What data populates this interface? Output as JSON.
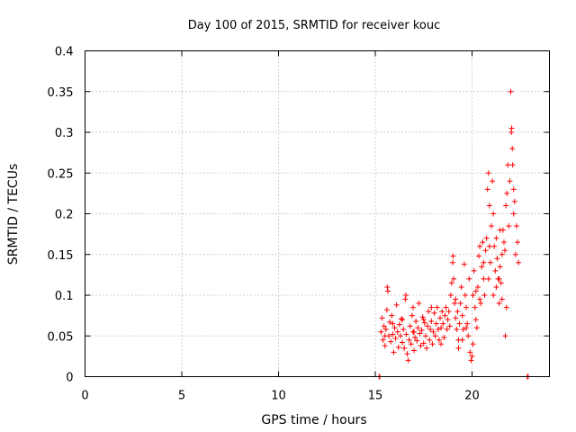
{
  "chart_data": {
    "type": "scatter",
    "title": "Day 100 of 2015, SRMTID for receiver kouc",
    "xlabel": "GPS time / hours",
    "ylabel": "SRMTID / TECUs",
    "xlim": [
      0,
      24
    ],
    "ylim": [
      0,
      0.4
    ],
    "x_ticks": [
      0,
      5,
      10,
      15,
      20
    ],
    "y_ticks": [
      0,
      0.05,
      0.1,
      0.15,
      0.2,
      0.25,
      0.3,
      0.35,
      0.4
    ],
    "x_tick_labels": [
      "0",
      "5",
      "10",
      "15",
      "20"
    ],
    "y_tick_labels": [
      "0",
      "0.05",
      "0.1",
      "0.15",
      "0.2",
      "0.25",
      "0.3",
      "0.35",
      "0.4"
    ],
    "grid": true,
    "marker": "+",
    "series": [
      {
        "name": "SRMTID",
        "color": "#ff0000",
        "points": [
          [
            15.2,
            0.0
          ],
          [
            15.23,
            0.0
          ],
          [
            22.85,
            0.0
          ],
          [
            22.9,
            0.0
          ],
          [
            15.3,
            0.055
          ],
          [
            15.35,
            0.072
          ],
          [
            15.4,
            0.045
          ],
          [
            15.45,
            0.062
          ],
          [
            15.5,
            0.038
          ],
          [
            15.55,
            0.058
          ],
          [
            15.6,
            0.082
          ],
          [
            15.62,
            0.11
          ],
          [
            15.65,
            0.105
          ],
          [
            15.7,
            0.05
          ],
          [
            15.75,
            0.067
          ],
          [
            15.8,
            0.043
          ],
          [
            15.85,
            0.075
          ],
          [
            15.9,
            0.052
          ],
          [
            15.95,
            0.03
          ],
          [
            16.0,
            0.06
          ],
          [
            16.05,
            0.047
          ],
          [
            16.1,
            0.088
          ],
          [
            16.15,
            0.055
          ],
          [
            16.2,
            0.036
          ],
          [
            16.25,
            0.064
          ],
          [
            16.3,
            0.05
          ],
          [
            16.35,
            0.071
          ],
          [
            16.4,
            0.042
          ],
          [
            16.45,
            0.058
          ],
          [
            16.5,
            0.035
          ],
          [
            16.55,
            0.095
          ],
          [
            16.58,
            0.1
          ],
          [
            16.6,
            0.052
          ],
          [
            16.65,
            0.028
          ],
          [
            16.7,
            0.02
          ],
          [
            16.75,
            0.045
          ],
          [
            16.8,
            0.062
          ],
          [
            16.85,
            0.04
          ],
          [
            16.9,
            0.075
          ],
          [
            16.95,
            0.055
          ],
          [
            17.0,
            0.032
          ],
          [
            17.05,
            0.048
          ],
          [
            17.1,
            0.068
          ],
          [
            17.15,
            0.044
          ],
          [
            17.2,
            0.06
          ],
          [
            17.25,
            0.09
          ],
          [
            17.3,
            0.053
          ],
          [
            17.35,
            0.038
          ],
          [
            17.4,
            0.057
          ],
          [
            17.45,
            0.073
          ],
          [
            17.5,
            0.041
          ],
          [
            17.55,
            0.066
          ],
          [
            17.6,
            0.05
          ],
          [
            17.65,
            0.035
          ],
          [
            17.7,
            0.062
          ],
          [
            17.75,
            0.08
          ],
          [
            17.8,
            0.045
          ],
          [
            17.85,
            0.058
          ],
          [
            17.9,
            0.068
          ],
          [
            17.95,
            0.04
          ],
          [
            18.0,
            0.055
          ],
          [
            18.05,
            0.078
          ],
          [
            18.1,
            0.05
          ],
          [
            18.15,
            0.065
          ],
          [
            18.2,
            0.085
          ],
          [
            18.25,
            0.058
          ],
          [
            18.3,
            0.045
          ],
          [
            18.35,
            0.072
          ],
          [
            18.4,
            0.06
          ],
          [
            18.45,
            0.08
          ],
          [
            18.5,
            0.065
          ],
          [
            18.55,
            0.048
          ],
          [
            18.6,
            0.075
          ],
          [
            18.65,
            0.085
          ],
          [
            18.7,
            0.058
          ],
          [
            18.75,
            0.07
          ],
          [
            18.8,
            0.08
          ],
          [
            18.85,
            0.062
          ],
          [
            18.9,
            0.1
          ],
          [
            18.95,
            0.115
          ],
          [
            19.0,
            0.14
          ],
          [
            19.02,
            0.148
          ],
          [
            19.05,
            0.12
          ],
          [
            19.1,
            0.09
          ],
          [
            19.15,
            0.072
          ],
          [
            19.2,
            0.058
          ],
          [
            19.25,
            0.08
          ],
          [
            19.3,
            0.045
          ],
          [
            19.35,
            0.065
          ],
          [
            19.4,
            0.09
          ],
          [
            19.45,
            0.11
          ],
          [
            19.5,
            0.075
          ],
          [
            19.55,
            0.058
          ],
          [
            19.6,
            0.138
          ],
          [
            19.65,
            0.1
          ],
          [
            19.7,
            0.085
          ],
          [
            19.75,
            0.065
          ],
          [
            19.8,
            0.05
          ],
          [
            19.85,
            0.12
          ],
          [
            19.9,
            0.03
          ],
          [
            19.95,
            0.02
          ],
          [
            20.0,
            0.025
          ],
          [
            20.05,
            0.1
          ],
          [
            20.1,
            0.13
          ],
          [
            20.15,
            0.085
          ],
          [
            20.2,
            0.07
          ],
          [
            20.25,
            0.06
          ],
          [
            20.3,
            0.11
          ],
          [
            20.35,
            0.148
          ],
          [
            20.4,
            0.16
          ],
          [
            20.45,
            0.09
          ],
          [
            20.5,
            0.135
          ],
          [
            20.55,
            0.165
          ],
          [
            20.6,
            0.12
          ],
          [
            20.65,
            0.1
          ],
          [
            20.7,
            0.155
          ],
          [
            20.75,
            0.17
          ],
          [
            20.8,
            0.23
          ],
          [
            20.85,
            0.25
          ],
          [
            20.9,
            0.21
          ],
          [
            20.95,
            0.14
          ],
          [
            21.0,
            0.185
          ],
          [
            21.05,
            0.24
          ],
          [
            21.1,
            0.2
          ],
          [
            21.15,
            0.16
          ],
          [
            21.2,
            0.13
          ],
          [
            21.25,
            0.17
          ],
          [
            21.3,
            0.145
          ],
          [
            21.35,
            0.12
          ],
          [
            21.4,
            0.09
          ],
          [
            21.45,
            0.135
          ],
          [
            21.5,
            0.115
          ],
          [
            21.55,
            0.095
          ],
          [
            21.6,
            0.18
          ],
          [
            21.65,
            0.165
          ],
          [
            21.7,
            0.155
          ],
          [
            21.75,
            0.21
          ],
          [
            21.8,
            0.225
          ],
          [
            21.85,
            0.26
          ],
          [
            21.9,
            0.185
          ],
          [
            21.95,
            0.24
          ],
          [
            22.0,
            0.35
          ],
          [
            22.03,
            0.3
          ],
          [
            22.05,
            0.305
          ],
          [
            22.08,
            0.28
          ],
          [
            22.1,
            0.26
          ],
          [
            22.15,
            0.2
          ],
          [
            22.2,
            0.215
          ],
          [
            22.25,
            0.15
          ],
          [
            22.3,
            0.185
          ],
          [
            22.35,
            0.165
          ],
          [
            22.4,
            0.14
          ],
          [
            21.72,
            0.05
          ],
          [
            21.78,
            0.085
          ],
          [
            21.55,
            0.15
          ],
          [
            21.4,
            0.12
          ],
          [
            21.25,
            0.11
          ],
          [
            21.1,
            0.1
          ],
          [
            20.9,
            0.16
          ],
          [
            20.6,
            0.14
          ],
          [
            20.4,
            0.095
          ],
          [
            20.2,
            0.105
          ],
          [
            19.7,
            0.06
          ],
          [
            19.5,
            0.045
          ],
          [
            19.3,
            0.035
          ],
          [
            17.9,
            0.085
          ],
          [
            17.5,
            0.07
          ],
          [
            17.0,
            0.055
          ],
          [
            16.4,
            0.07
          ],
          [
            15.9,
            0.065
          ],
          [
            15.5,
            0.05
          ],
          [
            16.95,
            0.085
          ],
          [
            18.4,
            0.04
          ],
          [
            19.15,
            0.095
          ],
          [
            20.05,
            0.04
          ],
          [
            20.85,
            0.12
          ],
          [
            21.45,
            0.18
          ],
          [
            22.15,
            0.23
          ]
        ]
      }
    ]
  }
}
